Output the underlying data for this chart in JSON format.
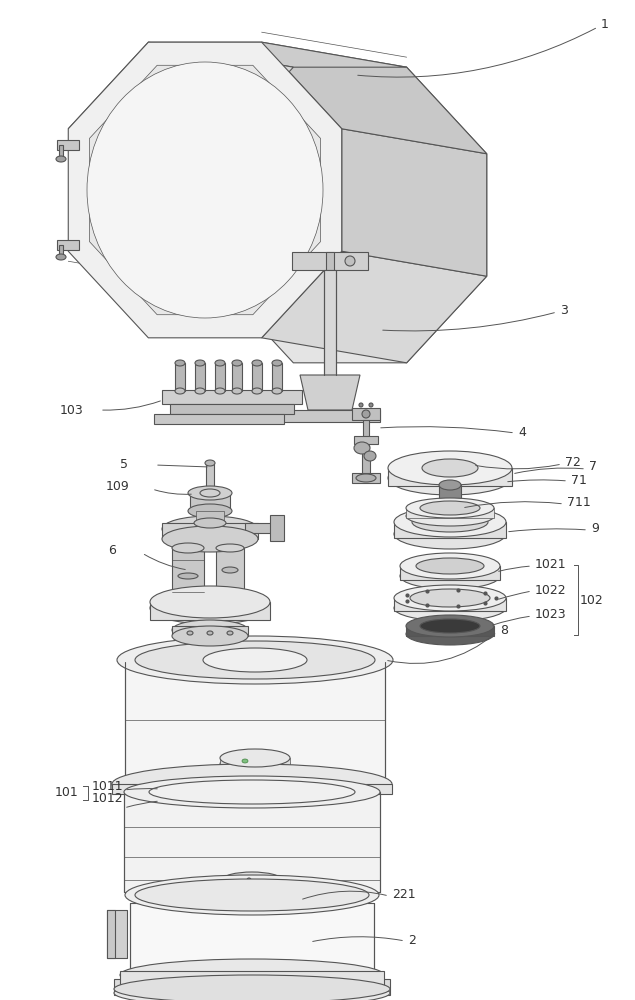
{
  "bg_color": "#ffffff",
  "line_color": "#555555",
  "lw": 0.8,
  "tlw": 0.5,
  "fs": 9,
  "label_color": "#333333"
}
